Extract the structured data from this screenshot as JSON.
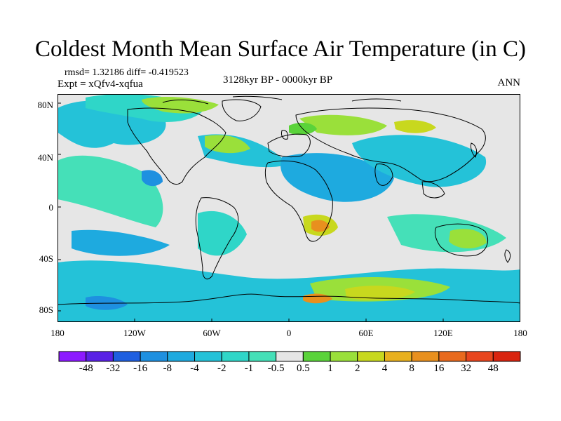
{
  "title": "Coldest Month Mean Surface Air Temperature (in C)",
  "stats": "rmsd= 1.32186 diff= -0.419523",
  "experiment": "Expt = xQfv4-xqfua",
  "period": "3128kyr BP - 0000kyr BP",
  "season": "ANN",
  "axes": {
    "lat_labels": [
      "80N",
      "40N",
      "0",
      "40S",
      "80S"
    ],
    "lon_labels": [
      "180",
      "120W",
      "60W",
      "0",
      "60E",
      "120E",
      "180"
    ]
  },
  "colorbar": {
    "labels": [
      "-48",
      "-32",
      "-16",
      "-8",
      "-4",
      "-2",
      "-1",
      "-0.5",
      "0.5",
      "1",
      "2",
      "4",
      "8",
      "16",
      "32",
      "48"
    ],
    "colors": [
      "#8c1aff",
      "#5a22e6",
      "#1f5fe0",
      "#1e90e0",
      "#1eaadf",
      "#24c2d8",
      "#2fd6c8",
      "#45e0b8",
      "#e6e6e6",
      "#5ad33a",
      "#9ae03a",
      "#c8d81e",
      "#e8b01e",
      "#e8901e",
      "#e86a1e",
      "#e8461e",
      "#d9240f"
    ]
  },
  "colors": {
    "background": "#ffffff",
    "neutral_band": "#e6e6e6",
    "coastline": "#000000"
  }
}
